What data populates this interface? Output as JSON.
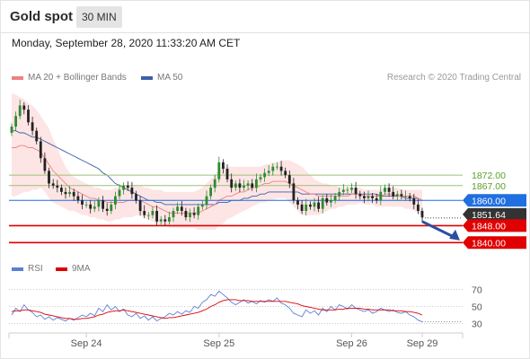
{
  "header": {
    "title": "Gold spot",
    "timeframe": "30 MIN"
  },
  "timestamp": "Monday, September 28, 2020 11:33:20 AM CET",
  "credit": "Research © 2020 Trading Central",
  "colors": {
    "ma20": "#f08080",
    "bands": "#fde1e1",
    "ma50": "#3d5fa8",
    "support": "#e00000",
    "pivot": "#1f6fe0",
    "resistance": "#9dc07a",
    "last_price": "#333333",
    "rsi": "#5b7fd8",
    "rsi_ma": "#e00000",
    "candle_up": "#2e8b2e",
    "candle_down": "#222222"
  },
  "chart_data": [
    {
      "type": "candlestick",
      "title": "Gold spot",
      "legend": [
        {
          "name": "MA 20 + Bollinger Bands",
          "color": "#f08080"
        },
        {
          "name": "MA 50",
          "color": "#3d5fa8"
        }
      ],
      "x_ticks": [
        "Sep 24",
        "Sep 25",
        "Sep 26",
        "Sep 29"
      ],
      "ylim": [
        1835,
        1915
      ],
      "levels": [
        {
          "label": "1872.00",
          "value": 1872,
          "kind": "resistance"
        },
        {
          "label": "1867.00",
          "value": 1867,
          "kind": "resistance"
        },
        {
          "label": "1860.00",
          "value": 1860,
          "kind": "pivot"
        },
        {
          "label": "1851.64",
          "value": 1851.64,
          "kind": "last"
        },
        {
          "label": "1848.00",
          "value": 1848,
          "kind": "support"
        },
        {
          "label": "1840.00",
          "value": 1840,
          "kind": "support"
        }
      ],
      "close": [
        1895,
        1900,
        1905,
        1903,
        1897,
        1893,
        1888,
        1880,
        1874,
        1868,
        1867,
        1866,
        1864,
        1863,
        1864,
        1862,
        1860,
        1858,
        1858,
        1856,
        1857,
        1860,
        1856,
        1855,
        1858,
        1862,
        1865,
        1867,
        1866,
        1863,
        1860,
        1855,
        1853,
        1853,
        1855,
        1850,
        1851,
        1850,
        1852,
        1855,
        1857,
        1855,
        1852,
        1854,
        1853,
        1857,
        1858,
        1862,
        1866,
        1870,
        1878,
        1875,
        1870,
        1866,
        1868,
        1866,
        1867,
        1868,
        1866,
        1870,
        1871,
        1873,
        1874,
        1876,
        1876,
        1874,
        1872,
        1868,
        1860,
        1858,
        1855,
        1858,
        1857,
        1859,
        1856,
        1861,
        1859,
        1860,
        1862,
        1864,
        1865,
        1865,
        1866,
        1863,
        1862,
        1861,
        1862,
        1861,
        1860,
        1864,
        1866,
        1864,
        1862,
        1863,
        1862,
        1862,
        1861,
        1858,
        1855,
        1852
      ],
      "ma20": [
        1885,
        1885,
        1886,
        1886,
        1885,
        1885,
        1884,
        1883,
        1880,
        1877,
        1874,
        1872,
        1870,
        1868,
        1866,
        1865,
        1864,
        1863,
        1862,
        1861,
        1861,
        1860,
        1860,
        1859,
        1859,
        1859,
        1859,
        1859,
        1860,
        1860,
        1860,
        1860,
        1859,
        1858,
        1857,
        1857,
        1856,
        1855,
        1854,
        1854,
        1854,
        1854,
        1854,
        1854,
        1854,
        1854,
        1855,
        1856,
        1857,
        1858,
        1860,
        1861,
        1862,
        1862,
        1863,
        1864,
        1864,
        1865,
        1866,
        1866,
        1867,
        1868,
        1868,
        1869,
        1869,
        1869,
        1869,
        1868,
        1867,
        1866,
        1865,
        1864,
        1863,
        1863,
        1862,
        1862,
        1862,
        1862,
        1862,
        1862,
        1862,
        1862,
        1863,
        1863,
        1863,
        1862,
        1862,
        1862,
        1862,
        1862,
        1863,
        1863,
        1863,
        1862,
        1862,
        1862,
        1862,
        1862,
        1861,
        1860
      ],
      "ma50": [
        1893,
        1893,
        1892,
        1892,
        1891,
        1890,
        1890,
        1889,
        1888,
        1887,
        1886,
        1885,
        1884,
        1883,
        1882,
        1881,
        1880,
        1879,
        1878,
        1877,
        1876,
        1875,
        1873,
        1872,
        1870,
        1868,
        1867,
        1866,
        1865,
        1864,
        1863,
        1862,
        1861,
        1860,
        1860,
        1859,
        1859,
        1858,
        1858,
        1858,
        1858,
        1858,
        1858,
        1858,
        1858,
        1858,
        1858,
        1858,
        1858,
        1858,
        1859,
        1859,
        1859,
        1860,
        1860,
        1860,
        1861,
        1861,
        1862,
        1862,
        1863,
        1863,
        1864,
        1864,
        1864,
        1864,
        1864,
        1864,
        1864,
        1864,
        1863,
        1863,
        1863,
        1863,
        1863,
        1863,
        1863,
        1863,
        1863,
        1863,
        1863,
        1863,
        1863,
        1863,
        1863,
        1863,
        1863,
        1863,
        1863,
        1862,
        1862,
        1862,
        1862,
        1862,
        1862,
        1861,
        1861,
        1861,
        1861,
        1860
      ],
      "band_upper": [
        1911,
        1910,
        1909,
        1908,
        1906,
        1905,
        1903,
        1900,
        1897,
        1894,
        1889,
        1885,
        1880,
        1876,
        1873,
        1871,
        1870,
        1869,
        1868,
        1867,
        1866,
        1866,
        1865,
        1865,
        1865,
        1866,
        1866,
        1866,
        1867,
        1867,
        1867,
        1867,
        1866,
        1866,
        1865,
        1865,
        1865,
        1864,
        1864,
        1864,
        1864,
        1864,
        1864,
        1864,
        1864,
        1865,
        1866,
        1868,
        1870,
        1872,
        1875,
        1876,
        1876,
        1876,
        1876,
        1876,
        1876,
        1876,
        1876,
        1876,
        1876,
        1877,
        1877,
        1878,
        1878,
        1879,
        1879,
        1879,
        1878,
        1877,
        1876,
        1874,
        1872,
        1870,
        1869,
        1868,
        1868,
        1867,
        1867,
        1866,
        1866,
        1866,
        1866,
        1866,
        1866,
        1865,
        1865,
        1865,
        1865,
        1865,
        1866,
        1866,
        1866,
        1866,
        1865,
        1865,
        1865,
        1865,
        1865,
        1865
      ],
      "band_lower": [
        1862,
        1862,
        1863,
        1864,
        1864,
        1865,
        1865,
        1866,
        1864,
        1861,
        1859,
        1858,
        1857,
        1856,
        1855,
        1855,
        1854,
        1853,
        1853,
        1852,
        1852,
        1851,
        1851,
        1850,
        1850,
        1851,
        1851,
        1852,
        1852,
        1852,
        1853,
        1853,
        1852,
        1851,
        1850,
        1849,
        1848,
        1848,
        1847,
        1847,
        1847,
        1847,
        1847,
        1847,
        1847,
        1846,
        1846,
        1846,
        1846,
        1846,
        1848,
        1849,
        1851,
        1852,
        1853,
        1854,
        1855,
        1856,
        1857,
        1858,
        1859,
        1859,
        1860,
        1860,
        1861,
        1861,
        1861,
        1859,
        1857,
        1855,
        1853,
        1853,
        1853,
        1853,
        1853,
        1854,
        1855,
        1856,
        1856,
        1857,
        1857,
        1858,
        1858,
        1858,
        1859,
        1858,
        1858,
        1858,
        1857,
        1857,
        1857,
        1857,
        1857,
        1857,
        1857,
        1856,
        1856,
        1855,
        1854,
        1853
      ],
      "projection": {
        "from": 1850,
        "to": 1841
      }
    },
    {
      "type": "line",
      "title": "",
      "legend": [
        {
          "name": "RSI",
          "color": "#5b7fd8"
        },
        {
          "name": "9MA",
          "color": "#e00000"
        }
      ],
      "yticks": [
        70,
        50,
        30
      ],
      "ylim": [
        20,
        80
      ],
      "rsi": [
        40,
        48,
        44,
        52,
        46,
        43,
        38,
        40,
        35,
        38,
        34,
        37,
        35,
        33,
        36,
        34,
        37,
        40,
        38,
        42,
        39,
        48,
        44,
        52,
        46,
        50,
        44,
        47,
        40,
        38,
        42,
        36,
        39,
        34,
        38,
        33,
        36,
        38,
        42,
        40,
        44,
        41,
        45,
        43,
        50,
        48,
        55,
        58,
        64,
        62,
        68,
        64,
        60,
        55,
        52,
        55,
        58,
        54,
        56,
        53,
        57,
        55,
        58,
        56,
        60,
        54,
        52,
        48,
        42,
        40,
        38,
        46,
        42,
        45,
        40,
        48,
        44,
        50,
        46,
        52,
        50,
        47,
        52,
        48,
        46,
        44,
        46,
        42,
        44,
        48,
        46,
        44,
        46,
        43,
        42,
        44,
        40,
        38,
        34,
        32
      ],
      "ma9": [
        44,
        45,
        45,
        46,
        46,
        45,
        44,
        43,
        41,
        40,
        39,
        38,
        37,
        36,
        36,
        35,
        35,
        36,
        36,
        37,
        38,
        40,
        41,
        43,
        44,
        45,
        45,
        46,
        45,
        44,
        43,
        42,
        41,
        40,
        39,
        38,
        37,
        36,
        37,
        37,
        38,
        39,
        40,
        41,
        42,
        43,
        45,
        47,
        50,
        52,
        55,
        57,
        58,
        58,
        58,
        57,
        57,
        57,
        56,
        56,
        56,
        56,
        56,
        56,
        56,
        56,
        56,
        55,
        54,
        53,
        51,
        50,
        49,
        48,
        47,
        46,
        46,
        46,
        46,
        47,
        47,
        48,
        48,
        48,
        48,
        47,
        47,
        46,
        46,
        46,
        46,
        46,
        45,
        45,
        45,
        44,
        44,
        43,
        42,
        40
      ]
    }
  ]
}
